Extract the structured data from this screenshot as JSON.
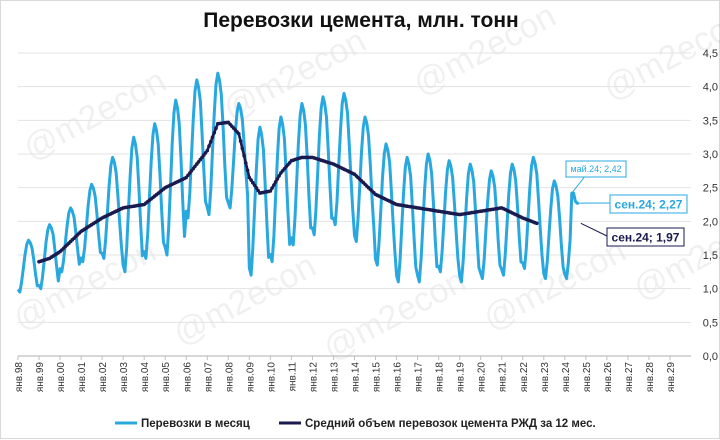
{
  "chart_data": {
    "type": "line",
    "title": "Перевозки цемента, млн. тонн",
    "watermark": "@m2econ",
    "ylim": [
      0,
      4.5
    ],
    "ytick_labels": [
      "0,0",
      "0,5",
      "1,0",
      "1,5",
      "2,0",
      "2,5",
      "3,0",
      "3,5",
      "4,0",
      "4,5"
    ],
    "x_tick_labels": [
      "янв.98",
      "янв.99",
      "янв.00",
      "янв.01",
      "янв.02",
      "янв.03",
      "янв.04",
      "янв.05",
      "янв.06",
      "янв.07",
      "янв.08",
      "янв.09",
      "янв.10",
      "янв.11",
      "янв.12",
      "янв.13",
      "янв.14",
      "янв.15",
      "янв.16",
      "янв.17",
      "янв.18",
      "янв.19",
      "янв.20",
      "янв.21",
      "янв.22",
      "янв.23",
      "янв.24",
      "янв.25",
      "янв.26",
      "янв.27",
      "янв.28",
      "янв.29"
    ],
    "grid": true,
    "legend_position": "bottom",
    "colors": {
      "monthly": "#29a8e0",
      "avg": "#1a1a4e",
      "axis": "#bfbfbf"
    },
    "series": [
      {
        "name": "Перевозки в месяц",
        "annual": [
          {
            "min": 0.95,
            "max": 1.72
          },
          {
            "min": 1.0,
            "max": 1.95
          },
          {
            "min": 1.25,
            "max": 2.2
          },
          {
            "min": 1.4,
            "max": 2.55
          },
          {
            "min": 1.45,
            "max": 2.95
          },
          {
            "min": 1.25,
            "max": 3.25
          },
          {
            "min": 1.45,
            "max": 3.45
          },
          {
            "min": 1.5,
            "max": 3.8
          },
          {
            "min": 2.05,
            "max": 4.1
          },
          {
            "min": 2.1,
            "max": 4.2
          },
          {
            "min": 2.2,
            "max": 3.75
          },
          {
            "min": 1.2,
            "max": 3.4
          },
          {
            "min": 1.4,
            "max": 3.55
          },
          {
            "min": 1.65,
            "max": 3.75
          },
          {
            "min": 1.8,
            "max": 3.85
          },
          {
            "min": 1.95,
            "max": 3.9
          },
          {
            "min": 1.7,
            "max": 3.55
          },
          {
            "min": 1.35,
            "max": 3.15
          },
          {
            "min": 1.1,
            "max": 2.95
          },
          {
            "min": 1.1,
            "max": 3.0
          },
          {
            "min": 1.25,
            "max": 2.9
          },
          {
            "min": 1.1,
            "max": 2.85
          },
          {
            "min": 1.15,
            "max": 2.75
          },
          {
            "min": 1.2,
            "max": 2.85
          },
          {
            "min": 1.3,
            "max": 2.95
          },
          {
            "min": 1.15,
            "max": 2.6
          },
          {
            "min": 1.15,
            "max": 2.42
          }
        ],
        "annotation_1": "май.24; 2,42",
        "annotation_2": "сен.24; 2,27"
      },
      {
        "name": "Средний объем перевозок цемента РЖД за 12 мес.",
        "knots_years_from_jan98": [
          1.0,
          1.5,
          2.0,
          3.0,
          4.0,
          5.0,
          6.0,
          7.0,
          8.0,
          9.0,
          9.5,
          10.0,
          10.5,
          11.0,
          11.5,
          12.0,
          12.5,
          13.0,
          13.5,
          14.0,
          15.0,
          16.0,
          17.0,
          18.0,
          19.0,
          20.0,
          21.0,
          22.0,
          23.0,
          24.0,
          24.67
        ],
        "values": [
          1.4,
          1.45,
          1.55,
          1.85,
          2.05,
          2.2,
          2.25,
          2.5,
          2.65,
          3.05,
          3.45,
          3.47,
          3.3,
          2.65,
          2.42,
          2.45,
          2.72,
          2.9,
          2.95,
          2.95,
          2.85,
          2.7,
          2.4,
          2.25,
          2.2,
          2.15,
          2.1,
          2.15,
          2.2,
          2.05,
          1.97
        ],
        "annotation": "сен.24; 1,97"
      }
    ]
  }
}
